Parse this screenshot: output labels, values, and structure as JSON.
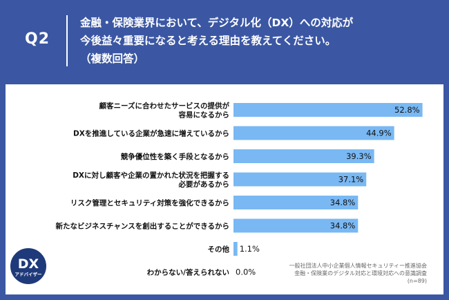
{
  "header": {
    "q_label": "Q2",
    "question_lines": [
      "金融・保険業界において、デジタル化（DX）への対応が",
      "今後益々重要になると考える理由を教えてください。",
      "（複数回答）"
    ]
  },
  "chart_data": {
    "type": "bar",
    "orientation": "horizontal",
    "categories": [
      "顧客ニーズに合わせたサービスの提供が\n容易になるから",
      "DXを推進している企業が急速に増えているから",
      "競争優位性を築く手段となるから",
      "DXに対し顧客や企業の置かれた状況を把握する\n必要があるから",
      "リスク管理とセキュリティ対策を強化できるから",
      "新たなビジネスチャンスを創出することができるから",
      "その他",
      "わからない/答えられない"
    ],
    "values": [
      52.8,
      44.9,
      39.3,
      37.1,
      34.8,
      34.8,
      1.1,
      0.0
    ],
    "value_labels": [
      "52.8%",
      "44.9%",
      "39.3%",
      "37.1%",
      "34.8%",
      "34.8%",
      "1.1%",
      "0.0%"
    ],
    "unit": "%",
    "xlim": [
      0,
      55
    ],
    "bar_color": "#79b8f3",
    "grid": false,
    "legend": "none"
  },
  "source": {
    "lines": [
      "一般社団法人中小企業個人情報セキュリティー推進協会",
      "金融・保険業のデジタル対応と環境対応への意識調査",
      "(n=89)"
    ]
  },
  "logo": {
    "text": "DX",
    "subtext": "アドバイザー"
  },
  "colors": {
    "header_bg": "#3b57a3",
    "panel_bg": "#ffffff",
    "bar": "#79b8f3",
    "logo_bg": "#1f3a7a"
  }
}
